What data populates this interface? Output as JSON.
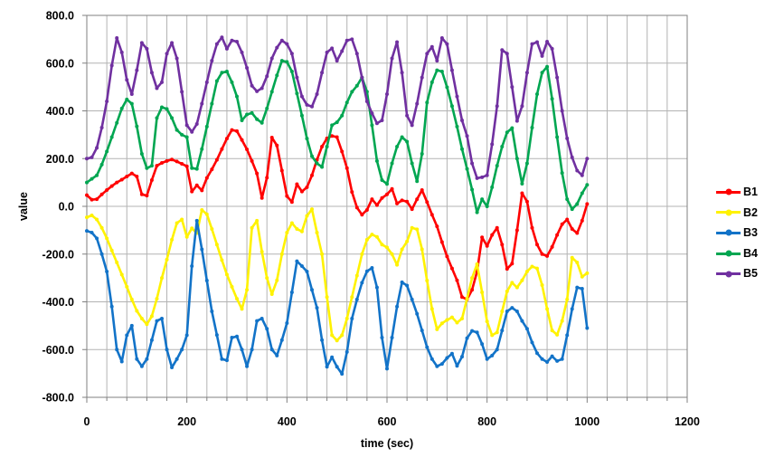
{
  "chart_data": {
    "type": "line",
    "title": "",
    "xlabel": "time (sec)",
    "ylabel": "value",
    "xlim": [
      0,
      1200
    ],
    "ylim": [
      -800,
      800
    ],
    "x_tick_labels": [
      "0",
      "200",
      "400",
      "600",
      "800",
      "1000",
      "1200"
    ],
    "x_ticks": [
      0,
      200,
      400,
      600,
      800,
      1000,
      1200
    ],
    "y_tick_labels": [
      "800.0",
      "600.0",
      "400.0",
      "200.0",
      "0.0",
      "-200.0",
      "-400.0",
      "-600.0",
      "-800.0"
    ],
    "y_ticks": [
      800,
      600,
      400,
      200,
      0,
      -200,
      -400,
      -600,
      -800
    ],
    "x_minor_grid_step": 40,
    "y_grid_step": 200,
    "grid_color": "#b3b3b3",
    "border_color": "#808080",
    "legend_position": "right",
    "marker": "circle",
    "x_start": 0,
    "x_step": 10,
    "x_end": 1000,
    "series": [
      {
        "name": "B1",
        "color": "#ff0000",
        "values": [
          47,
          28,
          30,
          50,
          68,
          85,
          100,
          112,
          125,
          138,
          125,
          50,
          45,
          110,
          170,
          182,
          190,
          196,
          188,
          178,
          168,
          62,
          88,
          67,
          119,
          155,
          195,
          240,
          284,
          320,
          315,
          278,
          239,
          190,
          138,
          35,
          120,
          288,
          255,
          150,
          43,
          18,
          93,
          62,
          80,
          130,
          195,
          250,
          285,
          295,
          290,
          230,
          160,
          60,
          -5,
          -35,
          -15,
          30,
          5,
          35,
          50,
          73,
          12,
          25,
          20,
          -12,
          30,
          68,
          18,
          -35,
          -84,
          -150,
          -210,
          -260,
          -310,
          -380,
          -390,
          -350,
          -273,
          -130,
          -166,
          -120,
          -90,
          -160,
          -262,
          -240,
          -100,
          55,
          20,
          -90,
          -160,
          -200,
          -208,
          -170,
          -120,
          -75,
          -55,
          -95,
          -112,
          -60,
          10
        ]
      },
      {
        "name": "B2",
        "color": "#fff200",
        "values": [
          -46,
          -38,
          -55,
          -90,
          -134,
          -185,
          -235,
          -286,
          -337,
          -390,
          -438,
          -470,
          -494,
          -460,
          -387,
          -300,
          -223,
          -140,
          -70,
          -55,
          -128,
          -92,
          -112,
          -15,
          -33,
          -95,
          -160,
          -225,
          -286,
          -337,
          -387,
          -430,
          -350,
          -90,
          -60,
          -190,
          -300,
          -368,
          -310,
          -200,
          -110,
          -70,
          -95,
          -105,
          -40,
          -12,
          -110,
          -200,
          -380,
          -540,
          -562,
          -540,
          -470,
          -380,
          -290,
          -200,
          -140,
          -118,
          -128,
          -160,
          -172,
          -200,
          -245,
          -180,
          -147,
          -90,
          -96,
          -180,
          -311,
          -430,
          -515,
          -490,
          -476,
          -465,
          -487,
          -470,
          -387,
          -300,
          -242,
          -360,
          -482,
          -540,
          -528,
          -440,
          -356,
          -320,
          -340,
          -310,
          -273,
          -252,
          -260,
          -330,
          -430,
          -520,
          -538,
          -480,
          -390,
          -215,
          -235,
          -295,
          -280
        ]
      },
      {
        "name": "B3",
        "color": "#1273c8",
        "values": [
          -103,
          -110,
          -134,
          -200,
          -273,
          -420,
          -600,
          -650,
          -540,
          -500,
          -640,
          -670,
          -640,
          -560,
          -480,
          -470,
          -600,
          -675,
          -640,
          -600,
          -540,
          -250,
          -60,
          -180,
          -311,
          -440,
          -539,
          -640,
          -645,
          -550,
          -545,
          -600,
          -670,
          -600,
          -480,
          -470,
          -513,
          -600,
          -625,
          -560,
          -489,
          -360,
          -230,
          -250,
          -273,
          -350,
          -425,
          -560,
          -672,
          -632,
          -672,
          -702,
          -610,
          -470,
          -390,
          -320,
          -272,
          -258,
          -340,
          -550,
          -680,
          -550,
          -420,
          -318,
          -332,
          -390,
          -450,
          -520,
          -590,
          -640,
          -670,
          -660,
          -635,
          -617,
          -668,
          -630,
          -552,
          -522,
          -528,
          -577,
          -640,
          -625,
          -600,
          -520,
          -440,
          -425,
          -440,
          -480,
          -513,
          -570,
          -615,
          -640,
          -652,
          -628,
          -648,
          -640,
          -540,
          -430,
          -340,
          -345,
          -510
        ]
      },
      {
        "name": "B4",
        "color": "#00a651",
        "values": [
          100,
          115,
          130,
          175,
          230,
          290,
          350,
          410,
          448,
          430,
          335,
          220,
          160,
          170,
          370,
          415,
          408,
          370,
          320,
          300,
          290,
          160,
          157,
          240,
          334,
          430,
          525,
          560,
          565,
          520,
          460,
          360,
          385,
          391,
          365,
          350,
          410,
          480,
          549,
          610,
          605,
          565,
          473,
          380,
          284,
          210,
          180,
          165,
          250,
          340,
          352,
          380,
          435,
          480,
          505,
          540,
          480,
          340,
          190,
          110,
          94,
          180,
          250,
          290,
          271,
          180,
          105,
          220,
          435,
          520,
          570,
          565,
          499,
          420,
          334,
          240,
          157,
          70,
          -25,
          30,
          0,
          80,
          170,
          250,
          310,
          328,
          200,
          95,
          180,
          330,
          470,
          560,
          585,
          450,
          290,
          140,
          30,
          -12,
          10,
          55,
          90
        ]
      },
      {
        "name": "B5",
        "color": "#7030a0",
        "values": [
          200,
          205,
          245,
          330,
          440,
          590,
          705,
          645,
          530,
          470,
          570,
          685,
          660,
          560,
          495,
          520,
          640,
          685,
          620,
          480,
          340,
          312,
          345,
          430,
          520,
          610,
          680,
          708,
          660,
          695,
          690,
          645,
          580,
          505,
          482,
          495,
          545,
          620,
          665,
          695,
          680,
          640,
          540,
          460,
          425,
          418,
          470,
          560,
          645,
          662,
          610,
          650,
          695,
          700,
          640,
          540,
          440,
          390,
          348,
          360,
          470,
          620,
          688,
          560,
          380,
          340,
          430,
          540,
          640,
          668,
          610,
          705,
          680,
          570,
          460,
          360,
          295,
          180,
          118,
          122,
          130,
          260,
          420,
          655,
          640,
          500,
          358,
          420,
          560,
          680,
          688,
          630,
          690,
          660,
          540,
          400,
          285,
          205,
          150,
          130,
          200
        ]
      }
    ]
  },
  "legend": {
    "entries": [
      "B1",
      "B2",
      "B3",
      "B4",
      "B5"
    ]
  }
}
